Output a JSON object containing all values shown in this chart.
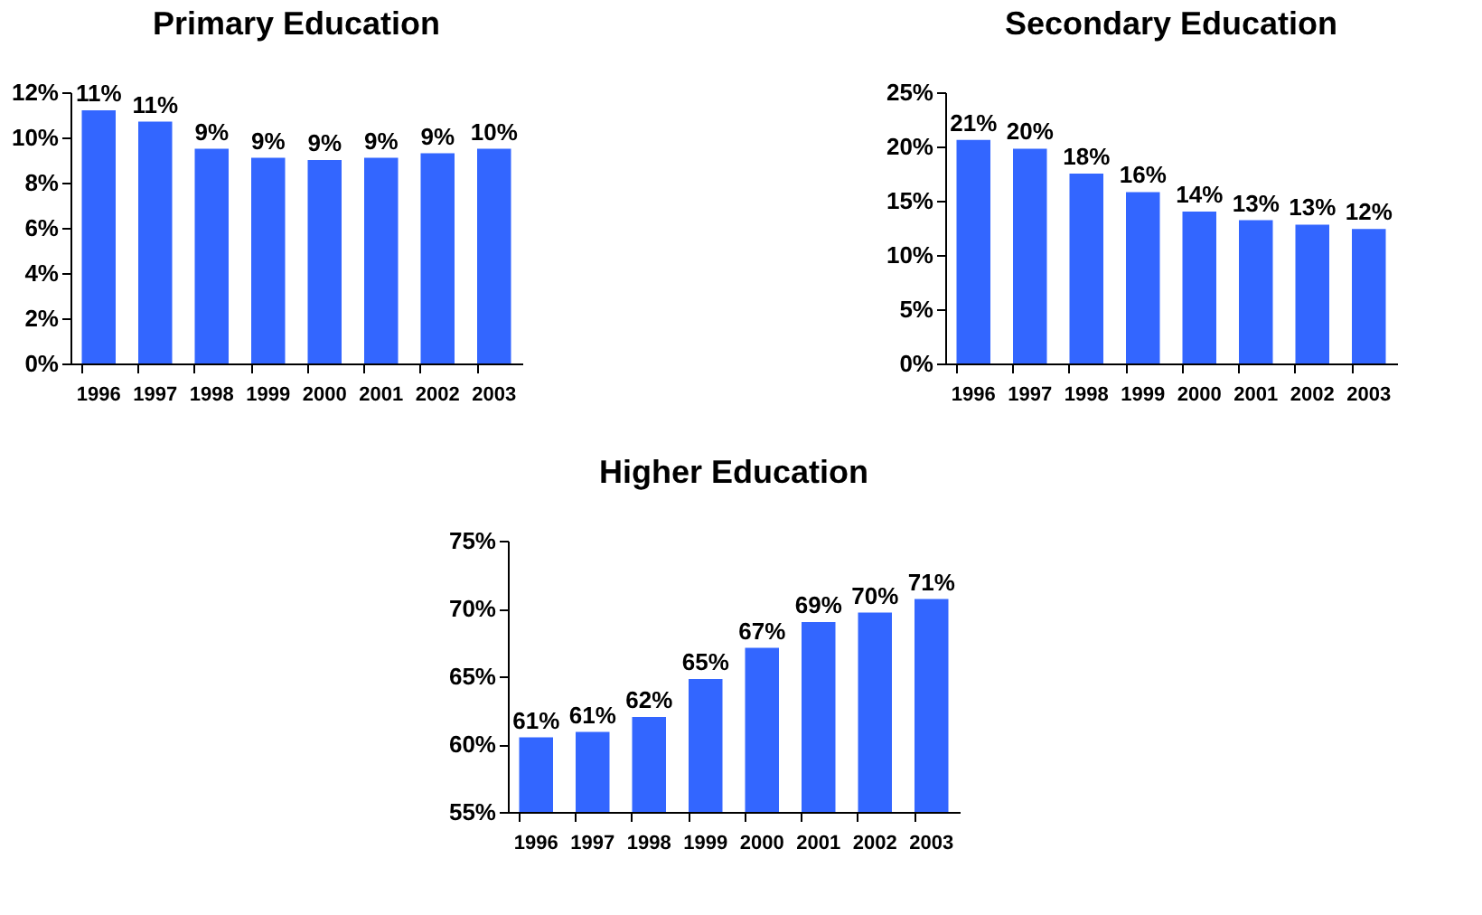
{
  "chart_data": [
    {
      "type": "bar",
      "title": "Primary Education",
      "categories": [
        "1996",
        "1997",
        "1998",
        "1999",
        "2000",
        "2001",
        "2002",
        "2003"
      ],
      "values": [
        11.2,
        10.7,
        9.5,
        9.1,
        9.0,
        9.1,
        9.3,
        9.5
      ],
      "value_labels": [
        "11%",
        "11%",
        "9%",
        "9%",
        "9%",
        "9%",
        "9%",
        "10%"
      ],
      "color": "#3366ff",
      "ylim": [
        0,
        12
      ],
      "yticks": [
        {
          "value": 0,
          "label": "0%"
        },
        {
          "value": 2,
          "label": "2%"
        },
        {
          "value": 4,
          "label": "4%"
        },
        {
          "value": 6,
          "label": "6%"
        },
        {
          "value": 8,
          "label": "8%"
        },
        {
          "value": 10,
          "label": "10%"
        },
        {
          "value": 12,
          "label": "12%"
        }
      ]
    },
    {
      "type": "bar",
      "title": "Secondary Education",
      "categories": [
        "1996",
        "1997",
        "1998",
        "1999",
        "2000",
        "2001",
        "2002",
        "2003"
      ],
      "values": [
        20.6,
        19.8,
        17.5,
        15.8,
        14.0,
        13.2,
        12.8,
        12.4
      ],
      "value_labels": [
        "21%",
        "20%",
        "18%",
        "16%",
        "14%",
        "13%",
        "13%",
        "12%"
      ],
      "color": "#3366ff",
      "ylim": [
        0,
        25
      ],
      "yticks": [
        {
          "value": 0,
          "label": "0%"
        },
        {
          "value": 5,
          "label": "5%"
        },
        {
          "value": 10,
          "label": "10%"
        },
        {
          "value": 15,
          "label": "15%"
        },
        {
          "value": 20,
          "label": "20%"
        },
        {
          "value": 25,
          "label": "25%"
        }
      ]
    },
    {
      "type": "bar",
      "title": "Higher Education",
      "categories": [
        "1996",
        "1997",
        "1998",
        "1999",
        "2000",
        "2001",
        "2002",
        "2003"
      ],
      "values": [
        60.5,
        60.9,
        62.0,
        64.8,
        67.1,
        69.0,
        69.7,
        70.7
      ],
      "value_labels": [
        "61%",
        "61%",
        "62%",
        "65%",
        "67%",
        "69%",
        "70%",
        "71%"
      ],
      "color": "#3366ff",
      "ylim": [
        55,
        75
      ],
      "yticks": [
        {
          "value": 55,
          "label": "55%"
        },
        {
          "value": 60,
          "label": "60%"
        },
        {
          "value": 65,
          "label": "65%"
        },
        {
          "value": 70,
          "label": "70%"
        },
        {
          "value": 75,
          "label": "75%"
        }
      ]
    }
  ]
}
